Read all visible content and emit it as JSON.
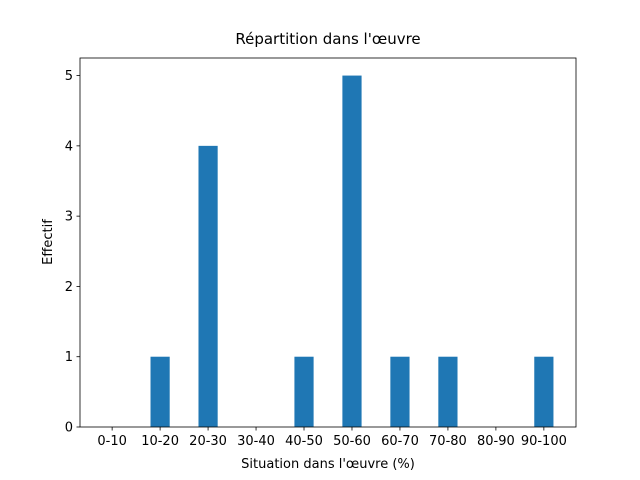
{
  "chart_data": {
    "type": "bar",
    "title": "Répartition dans l'œuvre",
    "x_label": "Situation dans l'œuvre (%)",
    "y_label": "Effectif",
    "categories": [
      "0-10",
      "10-20",
      "20-30",
      "30-40",
      "40-50",
      "50-60",
      "60-70",
      "70-80",
      "80-90",
      "90-100"
    ],
    "values": [
      0,
      1,
      4,
      0,
      1,
      5,
      1,
      1,
      0,
      1
    ],
    "color": "#1f77b4",
    "ylim": [
      0,
      5.25
    ],
    "yticks": [
      0,
      1,
      2,
      3,
      4,
      5
    ],
    "grid": false
  }
}
